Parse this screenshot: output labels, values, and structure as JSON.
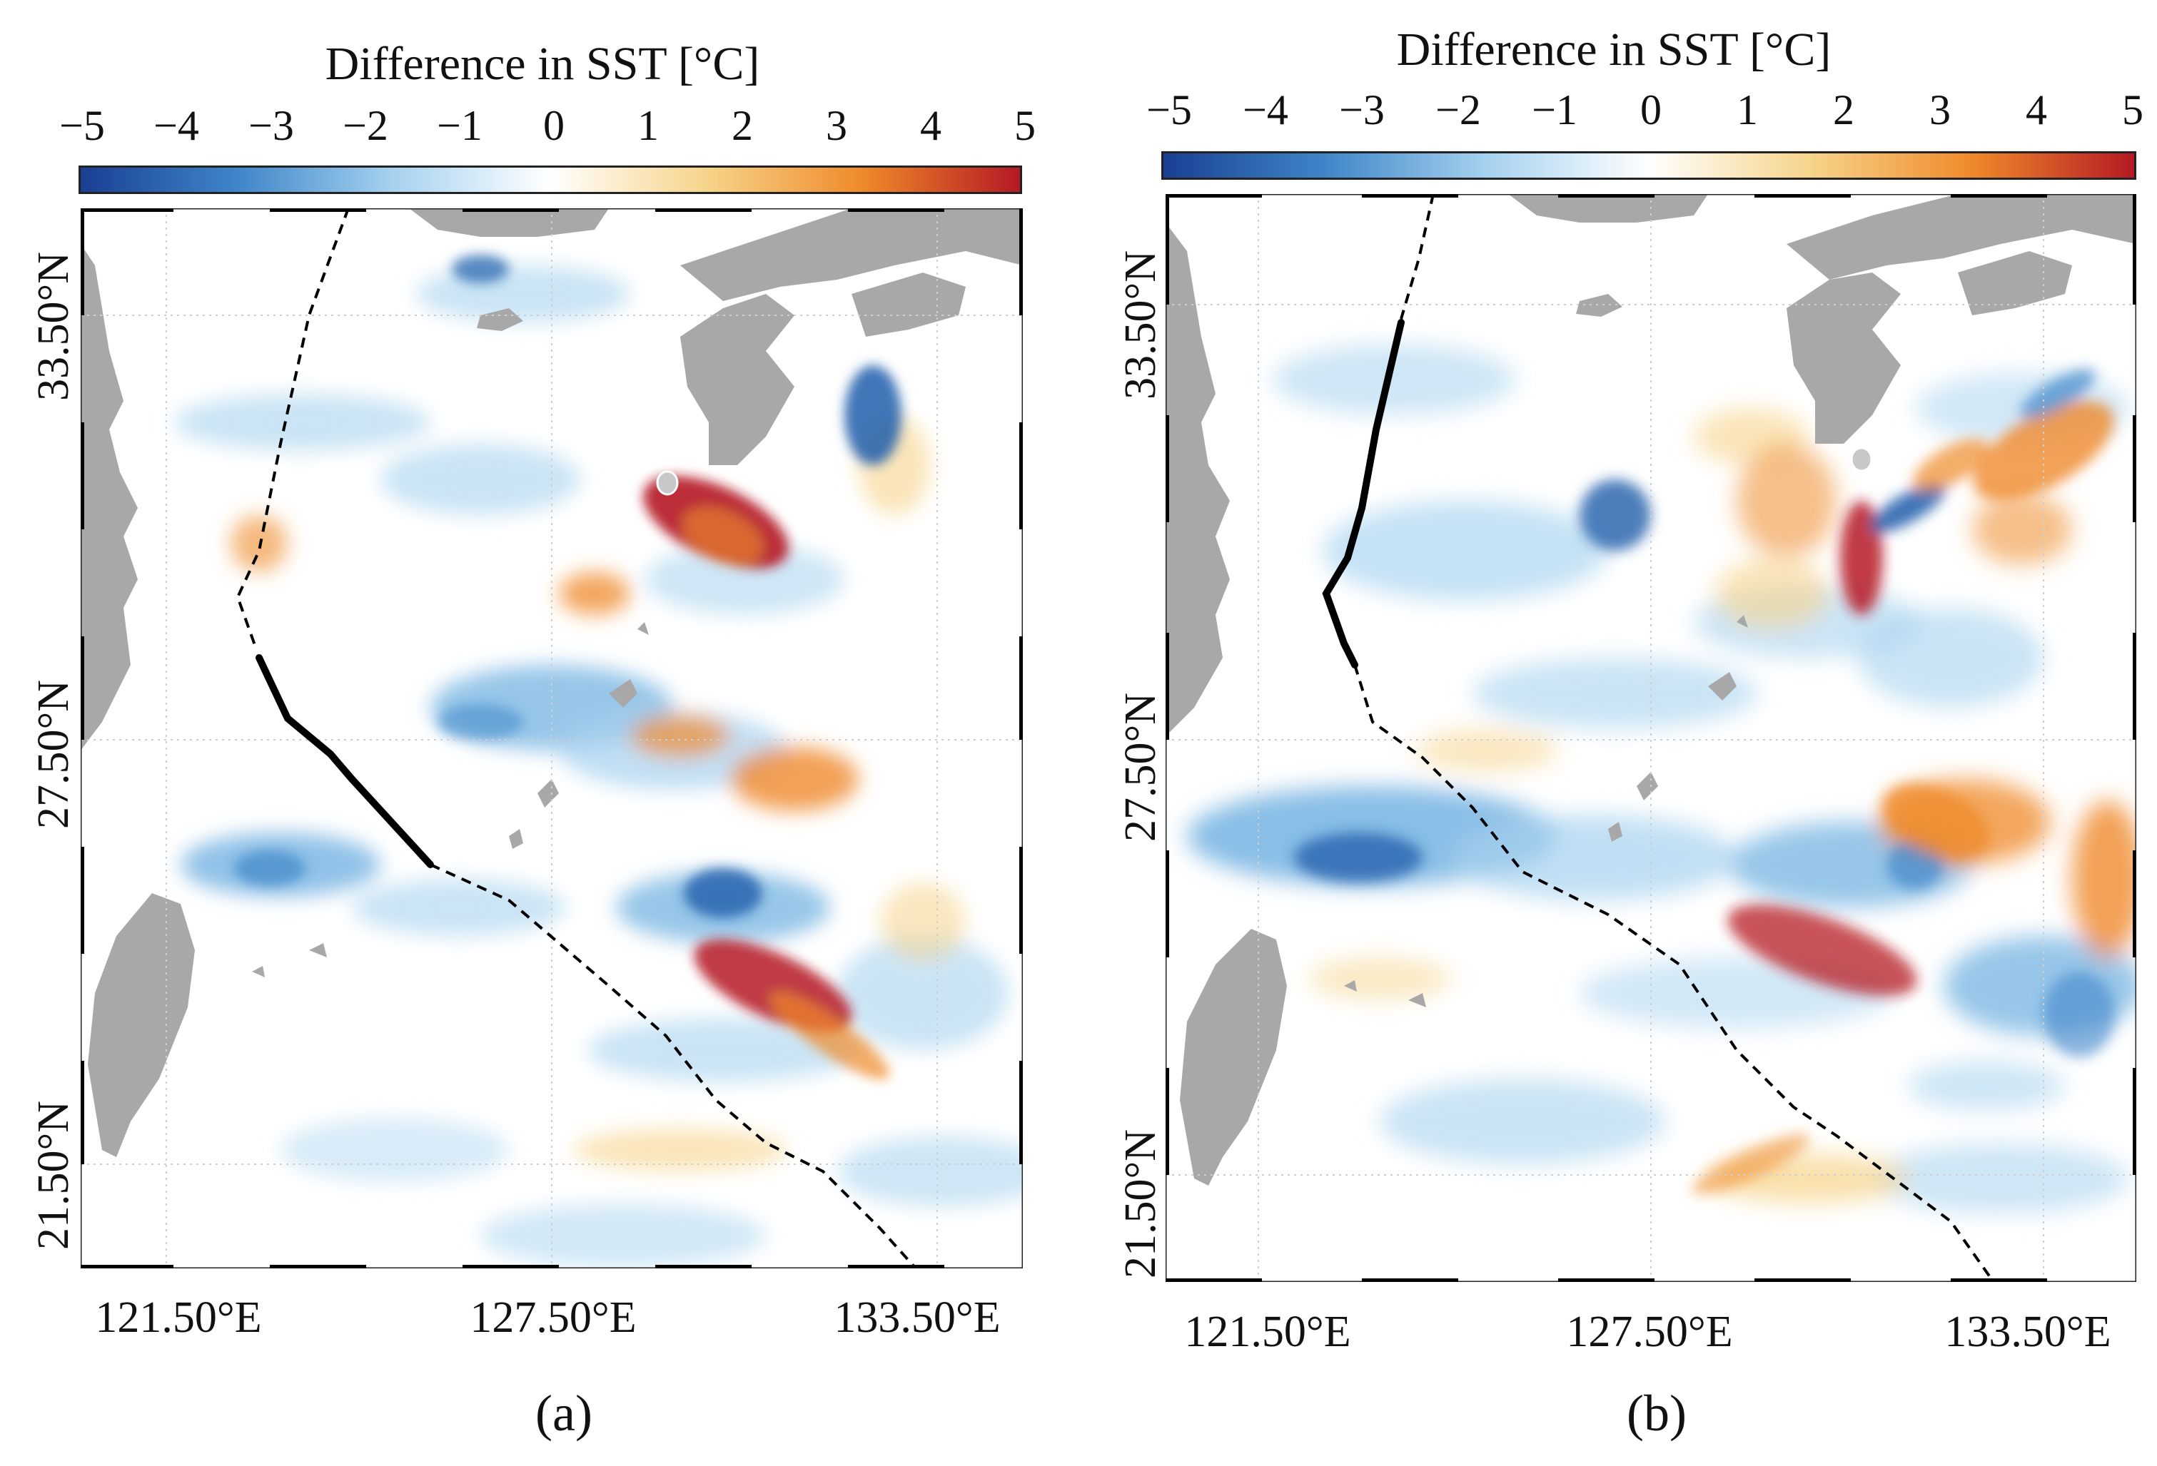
{
  "colorbar": {
    "title": "Difference in SST [°C]",
    "ticks": [
      "−5",
      "−4",
      "−3",
      "−2",
      "−1",
      "0",
      "1",
      "2",
      "3",
      "4",
      "5"
    ],
    "range": [
      -5,
      5
    ],
    "colors": [
      "#1a3f93",
      "#3f86c9",
      "#a6d2ef",
      "#ffffff",
      "#f6d48a",
      "#ef8a2a",
      "#b51924"
    ]
  },
  "axes": {
    "lon_ticks": [
      "121.50°E",
      "127.50°E",
      "133.50°E"
    ],
    "lat_ticks": [
      "21.50°N",
      "27.50°N",
      "33.50°N"
    ]
  },
  "colors": {
    "land": "#a8a8a8",
    "track": "#000000",
    "warm": "#e2701f",
    "warm_strong": "#b51924",
    "cool": "#6baee0",
    "cool_strong": "#1f5eab"
  },
  "panels": [
    {
      "id": "a",
      "label": "(a)"
    },
    {
      "id": "b",
      "label": "(b)"
    }
  ]
}
